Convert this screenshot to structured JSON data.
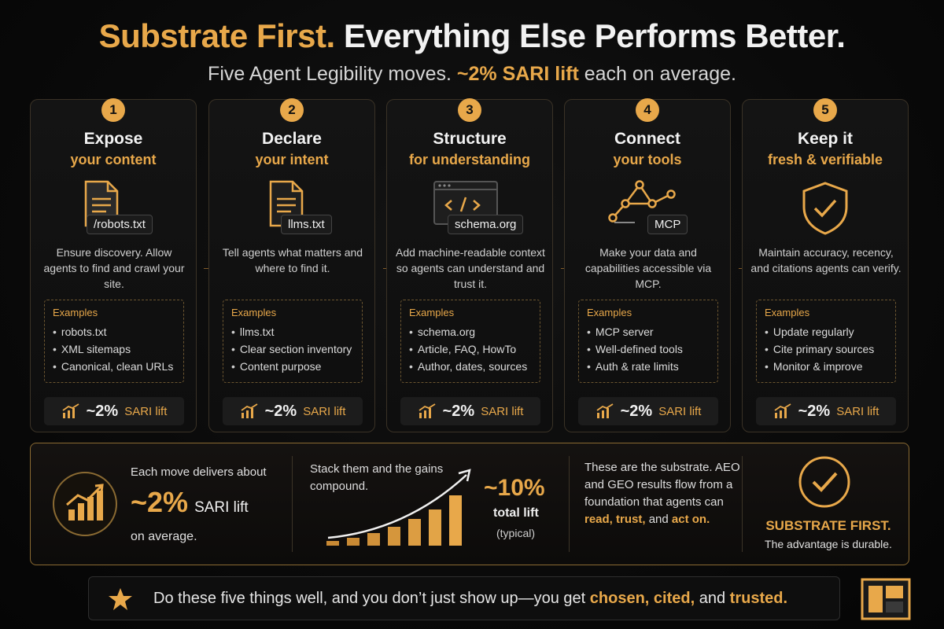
{
  "header": {
    "title_part1": "Substrate First.",
    "title_part2": "Everything Else Performs Better.",
    "subtitle_part1": "Five Agent Legibility moves.",
    "subtitle_highlight": "~2% SARI lift",
    "subtitle_part2": "each on average."
  },
  "cards": [
    {
      "number": "1",
      "title": "Expose",
      "subtitle": "your content",
      "icon": "document-icon",
      "tag": "/robots.txt",
      "description": "Ensure discovery. Allow agents to find and crawl your site.",
      "examples_label": "Examples",
      "examples": [
        "robots.txt",
        "XML sitemaps",
        "Canonical, clean URLs"
      ],
      "lift_value": "~2%",
      "lift_label": "SARI lift"
    },
    {
      "number": "2",
      "title": "Declare",
      "subtitle": "your intent",
      "icon": "document-icon",
      "tag": "llms.txt",
      "description": "Tell agents what matters and where to find it.",
      "examples_label": "Examples",
      "examples": [
        "llms.txt",
        "Clear section inventory",
        "Content purpose"
      ],
      "lift_value": "~2%",
      "lift_label": "SARI lift"
    },
    {
      "number": "3",
      "title": "Structure",
      "subtitle": "for understanding",
      "icon": "code-window-icon",
      "tag": "schema.org",
      "description": "Add machine-readable context so agents can understand and trust it.",
      "examples_label": "Examples",
      "examples": [
        "schema.org",
        "Article, FAQ, HowTo",
        "Author, dates, sources"
      ],
      "lift_value": "~2%",
      "lift_label": "SARI lift"
    },
    {
      "number": "4",
      "title": "Connect",
      "subtitle": "your tools",
      "icon": "network-icon",
      "tag": "MCP",
      "description": "Make your data and capabilities accessible via MCP.",
      "examples_label": "Examples",
      "examples": [
        "MCP server",
        "Well-defined tools",
        "Auth & rate limits"
      ],
      "lift_value": "~2%",
      "lift_label": "SARI lift"
    },
    {
      "number": "5",
      "title": "Keep it",
      "subtitle": "fresh & verifiable",
      "icon": "shield-check-icon",
      "tag": "",
      "description": "Maintain accuracy, recency, and citations agents can verify.",
      "examples_label": "Examples",
      "examples": [
        "Update regularly",
        "Cite primary sources",
        "Monitor & improve"
      ],
      "lift_value": "~2%",
      "lift_label": "SARI lift"
    }
  ],
  "summary": {
    "s1_text": "Each move delivers about",
    "s1_value": "~2%",
    "s1_label": "SARI lift",
    "s1_avg": "on average.",
    "s2_text": "Stack them and the gains compound.",
    "s2_value": "~10%",
    "s2_total": "total lift",
    "s2_typical": "(typical)",
    "s3_part1": "These are the substrate. AEO and GEO results flow from a foundation that agents can",
    "s3_h1": "read, trust,",
    "s3_part2": "and",
    "s3_h2": "act on.",
    "s4_title": "SUBSTRATE FIRST.",
    "s4_sub": "The advantage is durable."
  },
  "footer": {
    "part1": "Do these five things well, and you don’t just show up—you get",
    "h1": "chosen, cited,",
    "part2": "and",
    "h2": "trusted."
  },
  "colors": {
    "accent": "#e8a84a",
    "background": "#0a0a0a"
  }
}
